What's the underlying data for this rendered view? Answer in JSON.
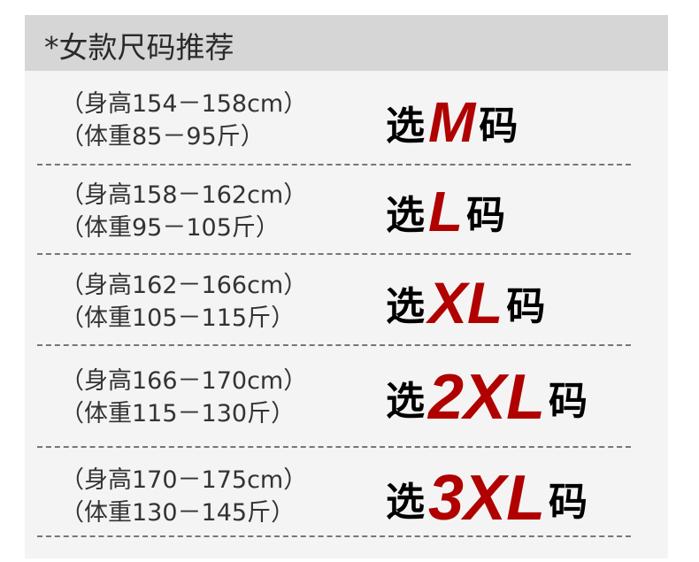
{
  "title": "*女款尺码推荐",
  "rows": [
    {
      "height": "（身高154－158cm）",
      "weight": "（体重85－95斤）",
      "prefix": "选",
      "size": "M",
      "suffix": "码"
    },
    {
      "height": "（身高158－162cm）",
      "weight": "（体重95－105斤）",
      "prefix": "选",
      "size": "L",
      "suffix": "码"
    },
    {
      "height": "（身高162－166cm）",
      "weight": "（体重105－115斤）",
      "prefix": "选",
      "size": "XL",
      "suffix": "码"
    },
    {
      "height": "（身高166－170cm）",
      "weight": "（体重115－130斤）",
      "prefix": "选",
      "size": "2XL",
      "suffix": "码"
    },
    {
      "height": "（身高170－175cm）",
      "weight": "（体重130－145斤）",
      "prefix": "选",
      "size": "3XL",
      "suffix": "码"
    }
  ],
  "colors": {
    "accent": "#b00000",
    "header_bg": "#d6d6d6",
    "body_bg": "#f4f4f4"
  }
}
